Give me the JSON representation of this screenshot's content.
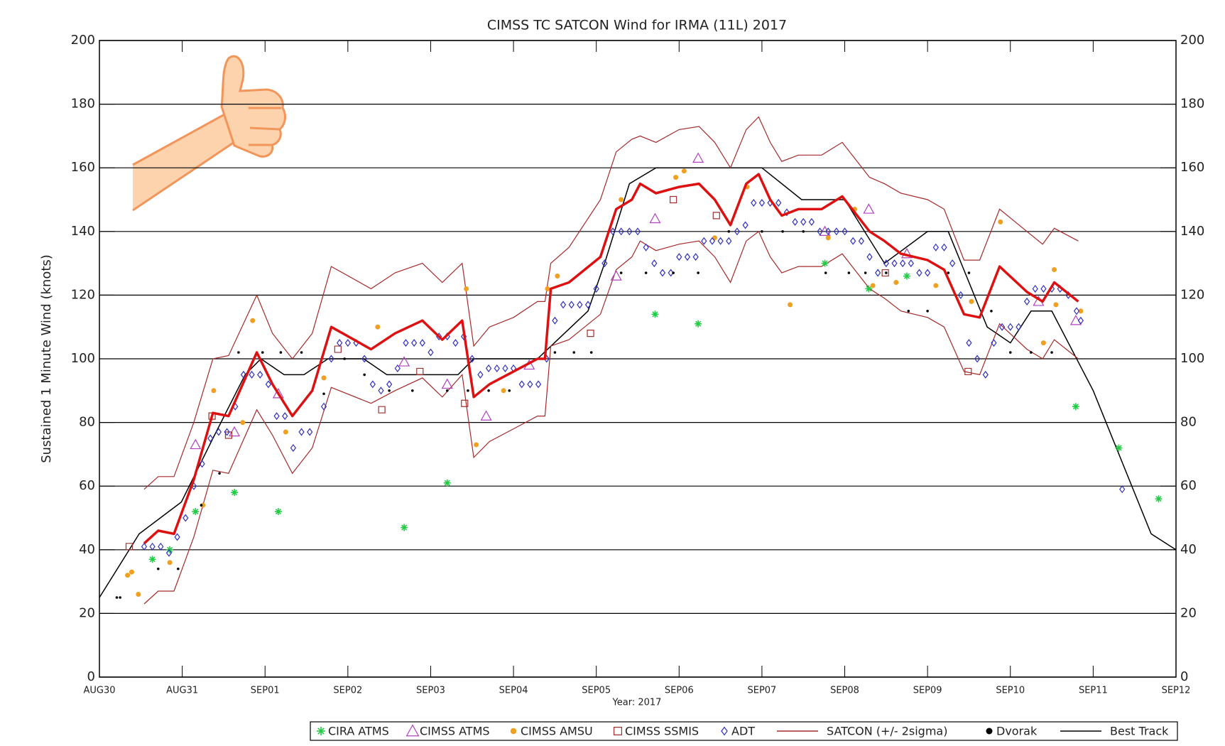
{
  "chart_data": {
    "type": "scatter",
    "title": "CIMSS TC SATCON Wind for IRMA (11L) 2017",
    "xlabel": "Year: 2017",
    "ylabel": "Sustained 1 Minute Wind (knots)",
    "xlim": [
      0,
      13
    ],
    "xticks": [
      {
        "value": 0,
        "label": "AUG30"
      },
      {
        "value": 1,
        "label": "AUG31"
      },
      {
        "value": 2,
        "label": "SEP01"
      },
      {
        "value": 3,
        "label": "SEP02"
      },
      {
        "value": 4,
        "label": "SEP03"
      },
      {
        "value": 5,
        "label": "SEP04"
      },
      {
        "value": 6,
        "label": "SEP05"
      },
      {
        "value": 7,
        "label": "SEP06"
      },
      {
        "value": 8,
        "label": "SEP07"
      },
      {
        "value": 9,
        "label": "SEP08"
      },
      {
        "value": 10,
        "label": "SEP09"
      },
      {
        "value": 11,
        "label": "SEP10"
      },
      {
        "value": 12,
        "label": "SEP11"
      },
      {
        "value": 13,
        "label": "SEP12"
      }
    ],
    "ylim": [
      0,
      200
    ],
    "yticks": [
      0,
      20,
      40,
      60,
      80,
      100,
      120,
      140,
      160,
      180,
      200
    ],
    "grid": true,
    "legend": "bottom",
    "series": [
      {
        "name": "CIRA ATMS",
        "marker": "asterisk",
        "color": "#22cc44",
        "x": [
          0.64,
          0.85,
          1.16,
          1.63,
          2.16,
          3.68,
          4.2,
          6.71,
          7.23,
          8.76,
          9.29,
          9.75,
          11.79,
          12.31,
          12.79
        ],
        "values": [
          37,
          40,
          52,
          58,
          52,
          47,
          61,
          114,
          111,
          130,
          122,
          126,
          85,
          72,
          56
        ]
      },
      {
        "name": "CIMSS ATMS",
        "marker": "triangle",
        "color": "#b040c0",
        "x": [
          1.16,
          1.63,
          2.16,
          3.68,
          4.2,
          4.67,
          5.19,
          6.24,
          6.71,
          7.23,
          8.76,
          9.29,
          9.75,
          11.34,
          11.79
        ],
        "values": [
          73,
          77,
          89,
          99,
          92,
          82,
          98,
          126,
          144,
          163,
          140,
          147,
          133,
          118,
          112
        ]
      },
      {
        "name": "CIMSS AMSU",
        "marker": "dot",
        "color": "#f0a020",
        "x": [
          0.34,
          0.39,
          0.47,
          0.85,
          1.25,
          1.38,
          1.73,
          1.85,
          2.25,
          2.71,
          3.36,
          4.43,
          4.55,
          4.88,
          5.41,
          5.53,
          6.3,
          6.96,
          7.06,
          7.43,
          7.82,
          8.34,
          8.8,
          9.12,
          9.34,
          9.62,
          10.1,
          10.53,
          10.88,
          11.4,
          11.53,
          11.55,
          11.85
        ],
        "values": [
          32,
          33,
          26,
          36,
          54,
          90,
          80,
          112,
          77,
          94,
          110,
          122,
          73,
          90,
          122,
          126,
          150,
          157,
          159,
          138,
          154,
          117,
          138,
          147,
          123,
          124,
          123,
          118,
          143,
          105,
          128,
          117,
          115
        ]
      },
      {
        "name": "CIMSS SSMIS",
        "marker": "square",
        "color": "#a03030",
        "x": [
          0.36,
          1.36,
          1.56,
          2.88,
          3.41,
          3.87,
          4.41,
          5.93,
          6.93,
          7.45,
          9.49,
          10.49
        ],
        "values": [
          41,
          82,
          76,
          103,
          84,
          96,
          86,
          108,
          150,
          145,
          127,
          96
        ]
      },
      {
        "name": "ADT",
        "marker": "diamond",
        "color": "#3030c0",
        "x": [
          0.54,
          0.64,
          0.74,
          0.84,
          0.94,
          1.04,
          1.14,
          1.24,
          1.34,
          1.44,
          1.54,
          1.64,
          1.74,
          1.84,
          1.94,
          2.04,
          2.14,
          2.24,
          2.34,
          2.44,
          2.54,
          2.71,
          2.8,
          2.9,
          3.0,
          3.1,
          3.2,
          3.3,
          3.4,
          3.5,
          3.6,
          3.7,
          3.8,
          3.9,
          4.0,
          4.1,
          4.2,
          4.3,
          4.4,
          4.5,
          4.6,
          4.7,
          4.8,
          4.9,
          5.0,
          5.1,
          5.2,
          5.3,
          5.4,
          5.5,
          5.6,
          5.7,
          5.8,
          5.9,
          6.0,
          6.1,
          6.2,
          6.3,
          6.4,
          6.5,
          6.6,
          6.7,
          6.8,
          6.9,
          7.0,
          7.1,
          7.2,
          7.3,
          7.4,
          7.5,
          7.6,
          7.7,
          7.8,
          7.9,
          8.0,
          8.1,
          8.2,
          8.3,
          8.4,
          8.5,
          8.6,
          8.7,
          8.8,
          8.9,
          9.0,
          9.1,
          9.2,
          9.3,
          9.4,
          9.5,
          9.6,
          9.7,
          9.8,
          9.9,
          10.0,
          10.1,
          10.2,
          10.3,
          10.4,
          10.5,
          10.6,
          10.7,
          10.8,
          10.9,
          11.0,
          11.1,
          11.2,
          11.3,
          11.4,
          11.5,
          11.6,
          11.7,
          11.8,
          11.85,
          12.35
        ],
        "values": [
          41,
          41,
          41,
          39,
          44,
          50,
          60,
          67,
          75,
          77,
          77,
          85,
          95,
          95,
          95,
          92,
          82,
          82,
          72,
          77,
          77,
          85,
          100,
          105,
          105,
          105,
          100,
          92,
          90,
          92,
          97,
          105,
          105,
          105,
          102,
          107,
          107,
          105,
          107,
          100,
          95,
          97,
          97,
          97,
          97,
          92,
          92,
          92,
          100,
          112,
          117,
          117,
          117,
          117,
          122,
          130,
          140,
          140,
          140,
          140,
          135,
          130,
          127,
          127,
          132,
          132,
          132,
          137,
          137,
          137,
          137,
          140,
          142,
          149,
          149,
          149,
          149,
          146,
          143,
          143,
          143,
          140,
          140,
          140,
          140,
          137,
          137,
          132,
          127,
          130,
          130,
          130,
          130,
          127,
          127,
          135,
          135,
          130,
          120,
          105,
          100,
          95,
          105,
          110,
          110,
          110,
          118,
          122,
          122,
          122,
          122,
          120,
          115,
          112,
          59
        ]
      },
      {
        "name": "SATCON (+/- 2sigma)",
        "marker": "band",
        "color": "#dd1111",
        "band_color": "#a52a2a",
        "x": [
          0.54,
          0.71,
          0.9,
          1.14,
          1.37,
          1.56,
          1.9,
          2.09,
          2.33,
          2.57,
          2.8,
          3.28,
          3.57,
          3.9,
          4.14,
          4.38,
          4.52,
          4.71,
          5.0,
          5.29,
          5.38,
          5.45,
          5.67,
          6.05,
          6.24,
          6.43,
          6.53,
          6.72,
          7.0,
          7.24,
          7.43,
          7.62,
          7.81,
          7.96,
          8.1,
          8.24,
          8.44,
          8.72,
          8.97,
          9.3,
          9.48,
          9.68,
          10.0,
          10.2,
          10.44,
          10.63,
          10.87,
          11.2,
          11.39,
          11.53,
          11.82
        ],
        "values": [
          42,
          46,
          45,
          62,
          83,
          82,
          102,
          92,
          82,
          90,
          110,
          103,
          108,
          112,
          106,
          112,
          88,
          92,
          96,
          100,
          100,
          122,
          124,
          132,
          147,
          150,
          155,
          152,
          154,
          155,
          150,
          142,
          155,
          158,
          150,
          145,
          147,
          147,
          151,
          140,
          137,
          133,
          131,
          128,
          114,
          113,
          129,
          121,
          118,
          124,
          118
        ],
        "upper": [
          59,
          63,
          63,
          80,
          100,
          101,
          120,
          108,
          100,
          108,
          129,
          122,
          127,
          130,
          124,
          130,
          104,
          110,
          113,
          118,
          118,
          130,
          135,
          150,
          165,
          169,
          170,
          168,
          172,
          173,
          168,
          160,
          172,
          176,
          168,
          162,
          164,
          164,
          168,
          157,
          155,
          152,
          150,
          147,
          131,
          131,
          147,
          140,
          136,
          141,
          137
        ],
        "lower": [
          23,
          27,
          27,
          44,
          65,
          64,
          84,
          76,
          64,
          72,
          91,
          86,
          90,
          94,
          88,
          95,
          69,
          74,
          78,
          82,
          82,
          104,
          106,
          114,
          128,
          132,
          137,
          134,
          136,
          137,
          132,
          124,
          137,
          140,
          132,
          127,
          129,
          129,
          133,
          122,
          119,
          115,
          113,
          110,
          96,
          95,
          111,
          103,
          100,
          106,
          100
        ]
      },
      {
        "name": "Dvorak",
        "marker": "small-dot",
        "color": "#000000",
        "x": [
          0.21,
          0.25,
          0.71,
          0.95,
          1.23,
          1.45,
          1.68,
          1.97,
          2.19,
          2.44,
          2.71,
          2.96,
          3.2,
          3.5,
          3.78,
          4.2,
          4.45,
          4.7,
          4.95,
          5.5,
          5.73,
          5.94,
          6.3,
          6.6,
          6.93,
          7.23,
          7.6,
          8.0,
          8.25,
          8.5,
          8.77,
          9.05,
          9.25,
          9.5,
          9.77,
          10.0,
          10.25,
          10.5,
          10.77,
          11.0,
          11.25,
          11.5
        ],
        "values": [
          25,
          25,
          34,
          34,
          54,
          64,
          102,
          102,
          102,
          102,
          89,
          100,
          95,
          90,
          90,
          90,
          90,
          90,
          90,
          102,
          102,
          102,
          127,
          127,
          127,
          127,
          140,
          140,
          140,
          140,
          127,
          127,
          127,
          127,
          115,
          115,
          127,
          127,
          115,
          102,
          102,
          102
        ]
      },
      {
        "name": "Best Track",
        "marker": "line",
        "color": "#000000",
        "x": [
          0,
          0.48,
          0.99,
          1.37,
          1.76,
          1.95,
          2.23,
          2.47,
          2.76,
          3.19,
          3.47,
          4.33,
          4.52,
          5.29,
          5.9,
          6.1,
          6.4,
          6.72,
          8.0,
          8.48,
          9.0,
          9.48,
          10.0,
          10.25,
          10.72,
          11.0,
          11.25,
          11.5,
          12.0,
          12.7,
          13
        ],
        "values": [
          25,
          45,
          55,
          75,
          95,
          100,
          95,
          95,
          100,
          100,
          95,
          95,
          100,
          100,
          115,
          130,
          155,
          160,
          160,
          150,
          150,
          130,
          140,
          140,
          110,
          105,
          115,
          115,
          90,
          45,
          40
        ]
      }
    ]
  }
}
